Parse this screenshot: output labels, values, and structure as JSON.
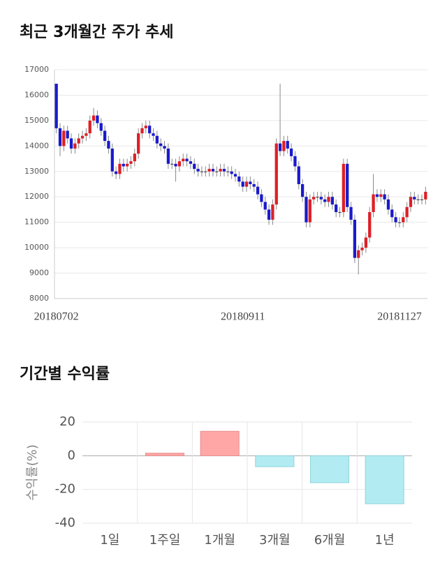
{
  "chart_data": [
    {
      "type": "candlestick",
      "title": "최근 3개월간 주가 추세",
      "categories": [
        "20180702",
        null,
        null,
        null,
        null,
        null,
        null,
        null,
        null,
        null,
        null,
        null,
        null,
        null,
        null,
        null,
        null,
        null,
        null,
        null,
        null,
        null,
        null,
        null,
        null,
        null,
        null,
        null,
        null,
        null,
        null,
        null,
        null,
        null,
        null,
        null,
        null,
        null,
        null,
        null,
        null,
        null,
        null,
        null,
        null,
        null,
        null,
        null,
        null,
        null,
        "20180911",
        null,
        null,
        null,
        null,
        null,
        null,
        null,
        null,
        null,
        null,
        null,
        null,
        null,
        null,
        null,
        null,
        null,
        null,
        null,
        null,
        null,
        null,
        null,
        null,
        null,
        null,
        null,
        null,
        null,
        null,
        null,
        null,
        null,
        null,
        null,
        null,
        null,
        null,
        null,
        null,
        null,
        null,
        null,
        null,
        null,
        null,
        null,
        null,
        "20181127"
      ],
      "open": [
        16450,
        14700,
        14000,
        14600,
        14300,
        13900,
        14100,
        14300,
        14400,
        14500,
        15000,
        15200,
        14900,
        14600,
        14200,
        13900,
        13000,
        12900,
        13300,
        13200,
        13300,
        13400,
        13700,
        14500,
        14700,
        14800,
        14500,
        14400,
        14100,
        14000,
        13900,
        13300,
        13300,
        13200,
        13400,
        13500,
        13400,
        13300,
        13100,
        13000,
        13000,
        13000,
        13100,
        13000,
        13000,
        13100,
        13000,
        13000,
        12900,
        12800,
        12600,
        12400,
        12600,
        12500,
        12400,
        12100,
        11800,
        11500,
        11100,
        11700,
        14100,
        13800,
        14200,
        13900,
        13600,
        13200,
        12500,
        12000,
        11000,
        11900,
        12000,
        12000,
        11900,
        11800,
        12000,
        11700,
        11400,
        11400,
        13300,
        11600,
        11100,
        9600,
        9900,
        10000,
        10400,
        11400,
        12100,
        12000,
        12100,
        11900,
        11500,
        11200,
        11000,
        11000,
        11200,
        11600,
        12000,
        11900,
        11900,
        11900
      ],
      "high": [
        16450,
        14900,
        14800,
        14800,
        14500,
        14300,
        14500,
        14600,
        14700,
        15200,
        15500,
        15400,
        15100,
        14800,
        14400,
        14100,
        13200,
        13500,
        13500,
        13500,
        13600,
        13900,
        14700,
        14900,
        15000,
        15000,
        14700,
        14600,
        14300,
        14200,
        14100,
        13500,
        13500,
        13600,
        13700,
        13700,
        13600,
        13500,
        13300,
        13200,
        13200,
        13300,
        13300,
        13200,
        13300,
        13300,
        13200,
        13200,
        13100,
        13000,
        12800,
        12800,
        12800,
        12700,
        12600,
        12300,
        12000,
        11700,
        11900,
        14300,
        16450,
        14400,
        14400,
        14100,
        13800,
        13400,
        12700,
        12200,
        12100,
        12200,
        12200,
        12200,
        12100,
        12200,
        12200,
        11900,
        11600,
        13500,
        13500,
        11800,
        11300,
        10100,
        10200,
        10600,
        11600,
        12900,
        12300,
        12300,
        12300,
        12100,
        11700,
        11400,
        11200,
        11400,
        11800,
        12200,
        12200,
        12100,
        12100,
        12400
      ],
      "low": [
        14500,
        13600,
        13800,
        14100,
        13700,
        13700,
        13900,
        14100,
        14200,
        14300,
        14800,
        14700,
        14400,
        14000,
        13700,
        12800,
        12700,
        12700,
        13000,
        13000,
        13100,
        13200,
        13500,
        14300,
        14500,
        14300,
        14200,
        13900,
        13800,
        13700,
        13100,
        13100,
        12600,
        13000,
        13200,
        13200,
        13100,
        12900,
        12800,
        12800,
        12800,
        12800,
        12800,
        12800,
        12800,
        12800,
        12800,
        12700,
        12600,
        12400,
        12200,
        12200,
        12300,
        12200,
        11900,
        11600,
        11300,
        10900,
        10900,
        11500,
        13600,
        13600,
        13700,
        13400,
        13000,
        12300,
        11800,
        10800,
        10800,
        11700,
        11800,
        11700,
        11600,
        11600,
        11500,
        11200,
        11200,
        11200,
        11400,
        10900,
        9400,
        8950,
        9700,
        9800,
        10200,
        11200,
        11800,
        11800,
        11700,
        11300,
        11000,
        10800,
        10800,
        10800,
        11000,
        11400,
        11700,
        11700,
        11700,
        11700
      ],
      "close": [
        14700,
        14000,
        14600,
        14300,
        13900,
        14100,
        14300,
        14400,
        14500,
        15000,
        15200,
        14900,
        14600,
        14200,
        13900,
        13000,
        12900,
        13300,
        13200,
        13300,
        13400,
        13700,
        14500,
        14700,
        14800,
        14500,
        14400,
        14100,
        14000,
        13900,
        13300,
        13300,
        13200,
        13400,
        13500,
        13400,
        13300,
        13100,
        13000,
        13000,
        13000,
        13100,
        13000,
        13000,
        13100,
        13000,
        13000,
        12900,
        12800,
        12600,
        12400,
        12600,
        12500,
        12400,
        12100,
        11800,
        11500,
        11100,
        11700,
        14100,
        13800,
        14200,
        13900,
        13600,
        13200,
        12500,
        12000,
        11000,
        11900,
        12000,
        12000,
        11900,
        11800,
        12000,
        11700,
        11400,
        11400,
        13300,
        11600,
        11100,
        9600,
        9900,
        10000,
        10400,
        11400,
        12100,
        12000,
        12100,
        11900,
        11500,
        11200,
        11000,
        11000,
        11200,
        11600,
        12000,
        11900,
        11900,
        11900,
        12200
      ],
      "up_color": "#dd1f26",
      "down_color": "#1a1acb",
      "ylim": [
        8000,
        17000
      ],
      "yticks": [
        8000,
        9000,
        10000,
        11000,
        12000,
        13000,
        14000,
        15000,
        16000,
        17000
      ],
      "grid": true
    },
    {
      "type": "bar",
      "title": "기간별 수익률",
      "y_label": "수익률(%)",
      "categories": [
        "1일",
        "1주일",
        "1개월",
        "3개월",
        "6개월",
        "1년"
      ],
      "values": [
        0,
        1.5,
        14.5,
        -6.5,
        -16,
        -28.5
      ],
      "positive_color": "#ffa6a6",
      "negative_color": "#b2ebf2",
      "ylim": [
        -40,
        20
      ],
      "yticks": [
        -40,
        -20,
        0,
        20
      ],
      "grid": true
    }
  ]
}
